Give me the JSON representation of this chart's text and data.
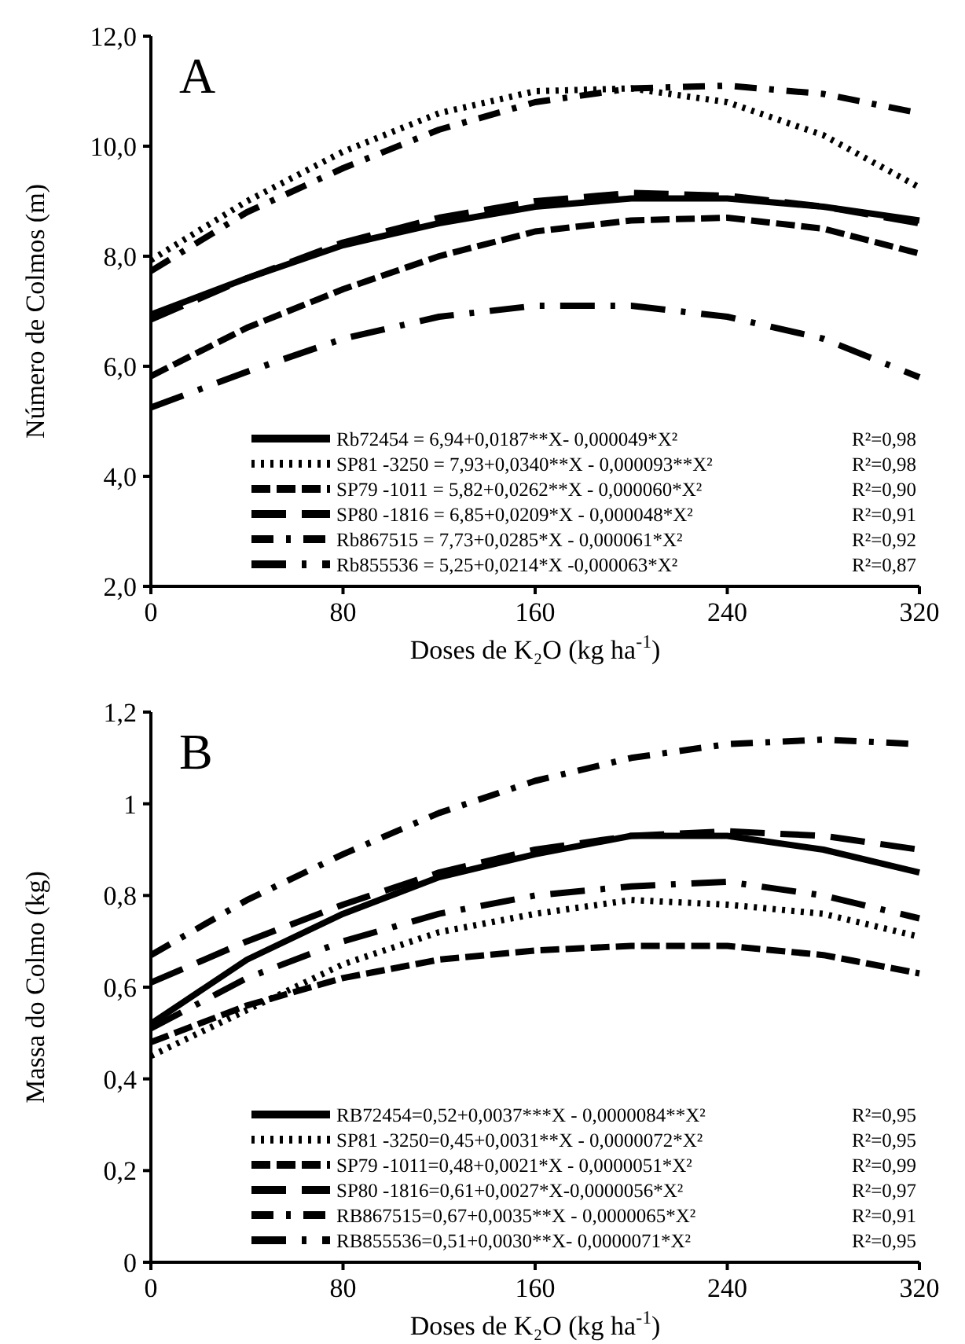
{
  "chart_data": [
    {
      "type": "line",
      "title": "A",
      "xlabel": "Doses de K₂O (kg ha$^{-1}$)",
      "ylabel": "Número de Colmos (m)",
      "x": [
        0,
        40,
        80,
        120,
        160,
        200,
        240,
        280,
        320
      ],
      "xlim": [
        0,
        320
      ],
      "xticks": [
        0,
        80,
        160,
        240,
        320
      ],
      "ylim": [
        2,
        12
      ],
      "yticks": [
        {
          "value": 2,
          "label": "2,0"
        },
        {
          "value": 4,
          "label": "4,0"
        },
        {
          "value": 6,
          "label": "6,0"
        },
        {
          "value": 8,
          "label": "8,0"
        },
        {
          "value": 10,
          "label": "10,0"
        },
        {
          "value": 12,
          "label": "12,0"
        }
      ],
      "grid": false,
      "legend": "bottom",
      "marker": "none",
      "series": [
        {
          "name": "Rb72454 = 6,94+0,0187**X- 0,000049*X²",
          "color": "#000000",
          "line_style": "solid",
          "values": [
            6.94,
            7.6,
            8.2,
            8.6,
            8.9,
            9.05,
            9.05,
            8.9,
            8.65
          ]
        },
        {
          "name": "SP81 -3250 = 7,93+0,0340**X - 0,000093**X²",
          "color": "#000000",
          "line_style": "dotted",
          "values": [
            7.93,
            9.0,
            9.9,
            10.6,
            11.0,
            11.05,
            10.8,
            10.2,
            9.25
          ]
        },
        {
          "name": "SP79 -1011 = 5,82+0,0262**X - 0,000060*X²",
          "color": "#000000",
          "line_style": "dashed",
          "values": [
            5.82,
            6.7,
            7.4,
            8.0,
            8.45,
            8.65,
            8.7,
            8.5,
            8.05
          ]
        },
        {
          "name": "SP80 -1816 = 6,85+0,0209*X - 0,000048*X²",
          "color": "#000000",
          "line_style": "dashed",
          "values": [
            6.85,
            7.6,
            8.25,
            8.7,
            9.0,
            9.15,
            9.1,
            8.9,
            8.6
          ]
        },
        {
          "name": "Rb867515 = 7,73+0,0285*X  - 0,000061*X²",
          "color": "#000000",
          "line_style": "dashed",
          "values": [
            7.73,
            8.8,
            9.6,
            10.3,
            10.8,
            11.05,
            11.1,
            10.95,
            10.6
          ]
        },
        {
          "name": "Rb855536 = 5,25+0,0214*X  -0,000063*X²",
          "color": "#000000",
          "line_style": "dashed",
          "values": [
            5.25,
            5.9,
            6.5,
            6.9,
            7.1,
            7.1,
            6.9,
            6.5,
            5.8
          ]
        }
      ],
      "annotations": [
        "R²=0,98",
        "R²=0,98",
        "R²=0,90",
        "R²=0,91",
        "R²=0,92",
        "R²=0,87"
      ]
    },
    {
      "type": "line",
      "title": "B",
      "xlabel": "Doses de K₂O (kg ha$^{-1}$)",
      "ylabel": "Massa do Colmo (kg)",
      "x": [
        0,
        40,
        80,
        120,
        160,
        200,
        240,
        280,
        320
      ],
      "xlim": [
        0,
        320
      ],
      "xticks": [
        0,
        80,
        160,
        240,
        320
      ],
      "ylim": [
        0,
        1.2
      ],
      "yticks": [
        0,
        {
          "value": 0.2,
          "label": "0,2"
        },
        {
          "value": 0.4,
          "label": "0,4"
        },
        {
          "value": 0.6,
          "label": "0,6"
        },
        {
          "value": 0.8,
          "label": "0,8"
        },
        1,
        {
          "value": 1.2,
          "label": "1,2"
        }
      ],
      "grid": false,
      "legend": "bottom",
      "marker": "none",
      "series": [
        {
          "name": "RB72454=0,52+0,0037***X - 0,0000084**X²",
          "color": "#000000",
          "line_style": "solid",
          "values": [
            0.52,
            0.66,
            0.76,
            0.84,
            0.89,
            0.93,
            0.93,
            0.9,
            0.85
          ]
        },
        {
          "name": "SP81 -3250=0,45+0,0031**X - 0,0000072*X²",
          "color": "#000000",
          "line_style": "dotted",
          "values": [
            0.45,
            0.55,
            0.65,
            0.72,
            0.76,
            0.79,
            0.78,
            0.76,
            0.71
          ]
        },
        {
          "name": "SP79 -1011=0,48+0,0021*X - 0,0000051*X²",
          "color": "#000000",
          "line_style": "dashed",
          "values": [
            0.48,
            0.56,
            0.62,
            0.66,
            0.68,
            0.69,
            0.69,
            0.67,
            0.63
          ]
        },
        {
          "name": "SP80 -1816=0,61+0,0027*X-0,0000056*X²",
          "color": "#000000",
          "line_style": "dashed",
          "values": [
            0.61,
            0.7,
            0.78,
            0.85,
            0.9,
            0.93,
            0.94,
            0.93,
            0.9
          ]
        },
        {
          "name": "RB867515=0,67+0,0035**X - 0,0000065*X²",
          "color": "#000000",
          "line_style": "dashed",
          "values": [
            0.67,
            0.79,
            0.89,
            0.98,
            1.05,
            1.1,
            1.13,
            1.14,
            1.13
          ]
        },
        {
          "name": "RB855536=0,51+0,0030**X- 0,0000071*X²",
          "color": "#000000",
          "line_style": "dashed",
          "values": [
            0.51,
            0.62,
            0.7,
            0.76,
            0.8,
            0.82,
            0.83,
            0.8,
            0.75
          ]
        }
      ],
      "annotations": [
        "R²=0,95",
        "R²=0,95",
        "R²=0,99",
        "R²=0,97",
        "R²=0,91",
        "R²=0,95"
      ]
    }
  ]
}
